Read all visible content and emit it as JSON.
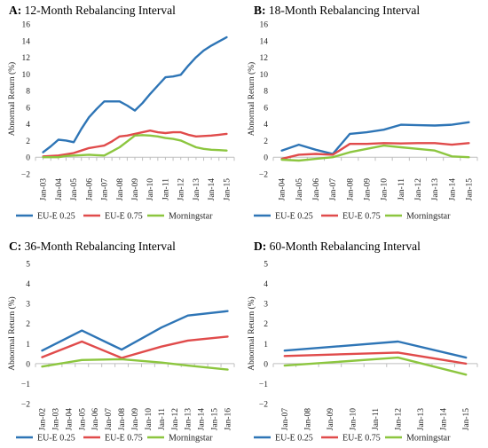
{
  "chart_data": [
    {
      "type": "line",
      "title_letter": "A:",
      "title_text": "12-Month Rebalancing Interval",
      "ylabel": "Abnormal Return (%)",
      "ylim": [
        -2,
        16
      ],
      "yticks": [
        -2,
        0,
        2,
        4,
        6,
        8,
        10,
        12,
        14,
        16
      ],
      "categories": [
        "Jan-03",
        "Jan-04",
        "Jan-05",
        "Jan-06",
        "Jan-07",
        "Jan-08",
        "Jan-09",
        "Jan-10",
        "Jan-11",
        "Jan-12",
        "Jan-13",
        "Jan-14",
        "Jan-15"
      ],
      "subticks": 2,
      "series": [
        {
          "name": "EU-E 0.25",
          "color": "#2e75b6",
          "x": [
            0,
            0.5,
            1,
            1.5,
            2,
            2.5,
            3,
            3.5,
            4,
            4.5,
            5,
            5.5,
            6,
            6.5,
            7,
            7.5,
            8,
            8.5,
            9,
            9.5,
            10,
            10.5,
            11,
            11.5,
            12
          ],
          "values": [
            0.6,
            1.3,
            2.1,
            2.0,
            1.8,
            3.4,
            4.8,
            5.8,
            6.7,
            6.7,
            6.7,
            6.2,
            5.6,
            6.5,
            7.6,
            8.6,
            9.6,
            9.7,
            9.9,
            11.0,
            12.0,
            12.8,
            13.4,
            13.9,
            14.4
          ]
        },
        {
          "name": "EU-E 0.75",
          "color": "#e04b4b",
          "x": [
            0,
            0.5,
            1,
            1.5,
            2,
            2.5,
            3,
            3.5,
            4,
            4.5,
            5,
            5.5,
            6,
            6.5,
            7,
            7.5,
            8,
            8.5,
            9,
            9.5,
            10,
            10.5,
            11,
            11.5,
            12
          ],
          "values": [
            0.1,
            0.15,
            0.2,
            0.35,
            0.5,
            0.8,
            1.1,
            1.25,
            1.4,
            1.9,
            2.5,
            2.6,
            2.8,
            3.0,
            3.2,
            3.0,
            2.9,
            3.0,
            3.0,
            2.7,
            2.5,
            2.55,
            2.6,
            2.7,
            2.8
          ]
        },
        {
          "name": "Morningstar",
          "color": "#8cc63f",
          "x": [
            0,
            0.5,
            1,
            1.5,
            2,
            2.5,
            3,
            3.5,
            4,
            4.5,
            5,
            5.5,
            6,
            6.5,
            7,
            7.5,
            8,
            8.5,
            9,
            9.5,
            10,
            10.5,
            11,
            11.5,
            12
          ],
          "values": [
            0.0,
            0.0,
            0.0,
            0.15,
            0.2,
            0.25,
            0.3,
            0.25,
            0.2,
            0.7,
            1.2,
            1.9,
            2.6,
            2.65,
            2.6,
            2.5,
            2.3,
            2.2,
            2.0,
            1.6,
            1.2,
            1.0,
            0.9,
            0.85,
            0.8
          ]
        }
      ]
    },
    {
      "type": "line",
      "title_letter": "B:",
      "title_text": "18-Month Rebalancing Interval",
      "ylabel": "Abnormal Return (%)",
      "ylim": [
        -2,
        16
      ],
      "yticks": [
        -2,
        0,
        2,
        4,
        6,
        8,
        10,
        12,
        14,
        16
      ],
      "categories": [
        "Jan-04",
        "Jan-05",
        "Jan-06",
        "Jan-07",
        "Jan-08",
        "Jan-09",
        "Jan-10",
        "Jan-11",
        "Jan-12",
        "Jan-13",
        "Jan-14",
        "Jan-15"
      ],
      "subticks": 1,
      "series": [
        {
          "name": "EU-E 0.25",
          "color": "#2e75b6",
          "x": [
            0,
            1,
            2,
            3,
            4,
            5,
            6,
            7,
            8,
            9,
            10,
            11
          ],
          "values": [
            0.8,
            1.5,
            0.9,
            0.4,
            2.8,
            3.0,
            3.3,
            3.9,
            3.85,
            3.8,
            3.9,
            4.2
          ]
        },
        {
          "name": "EU-E 0.75",
          "color": "#e04b4b",
          "x": [
            0,
            1,
            2,
            3,
            4,
            5,
            6,
            7,
            8,
            9,
            10,
            11
          ],
          "values": [
            -0.2,
            0.3,
            0.4,
            0.3,
            1.6,
            1.6,
            1.7,
            1.65,
            1.7,
            1.7,
            1.5,
            1.7
          ]
        },
        {
          "name": "Morningstar",
          "color": "#8cc63f",
          "x": [
            0,
            1,
            2,
            3,
            4,
            5,
            6,
            7,
            8,
            9,
            10,
            11
          ],
          "values": [
            -0.3,
            -0.4,
            -0.2,
            0.0,
            0.6,
            1.0,
            1.4,
            1.2,
            1.0,
            0.8,
            0.1,
            0.0
          ]
        }
      ]
    },
    {
      "type": "line",
      "title_letter": "C:",
      "title_text": "36-Month Rebalancing Interval",
      "ylabel": "Abnormal Return (%)",
      "ylim": [
        -2,
        5
      ],
      "yticks": [
        -2,
        -1,
        0,
        1,
        2,
        3,
        4,
        5
      ],
      "categories": [
        "Jan-02",
        "Jan-03",
        "Jan-04",
        "Jan-05",
        "Jan-06",
        "Jan-07",
        "Jan-08",
        "Jan-09",
        "Jan-10",
        "Jan-11",
        "Jan-12",
        "Jan-13",
        "Jan-14",
        "Jan-15",
        "Jan-16"
      ],
      "subticks": 1,
      "series": [
        {
          "name": "EU-E 0.25",
          "color": "#2e75b6",
          "x": [
            0,
            3,
            6,
            9,
            11,
            14
          ],
          "values": [
            0.65,
            1.65,
            0.7,
            1.8,
            2.4,
            2.62
          ]
        },
        {
          "name": "EU-E 0.75",
          "color": "#e04b4b",
          "x": [
            0,
            3,
            6,
            9,
            11,
            14
          ],
          "values": [
            0.32,
            1.1,
            0.28,
            0.85,
            1.15,
            1.35
          ]
        },
        {
          "name": "Morningstar",
          "color": "#8cc63f",
          "x": [
            0,
            3,
            6,
            9,
            11,
            14
          ],
          "values": [
            -0.15,
            0.18,
            0.22,
            0.05,
            -0.1,
            -0.3
          ]
        }
      ]
    },
    {
      "type": "line",
      "title_letter": "D:",
      "title_text": "60-Month Rebalancing Interval",
      "ylabel": "Abnormal Return (%)",
      "ylim": [
        -2,
        5
      ],
      "yticks": [
        -2,
        -1,
        0,
        1,
        2,
        3,
        4,
        5
      ],
      "categories": [
        "Jan-07",
        "Jan-08",
        "Jan-09",
        "Jan-10",
        "Jan-11",
        "Jan-12",
        "Jan-13",
        "Jan-14",
        "Jan-15"
      ],
      "subticks": 1,
      "series": [
        {
          "name": "EU-E 0.25",
          "color": "#2e75b6",
          "x": [
            0,
            5,
            8
          ],
          "values": [
            0.65,
            1.1,
            0.3
          ]
        },
        {
          "name": "EU-E 0.75",
          "color": "#e04b4b",
          "x": [
            0,
            5,
            8
          ],
          "values": [
            0.38,
            0.55,
            0.0
          ]
        },
        {
          "name": "Morningstar",
          "color": "#8cc63f",
          "x": [
            0,
            5,
            8
          ],
          "values": [
            -0.1,
            0.3,
            -0.55
          ]
        }
      ]
    }
  ]
}
